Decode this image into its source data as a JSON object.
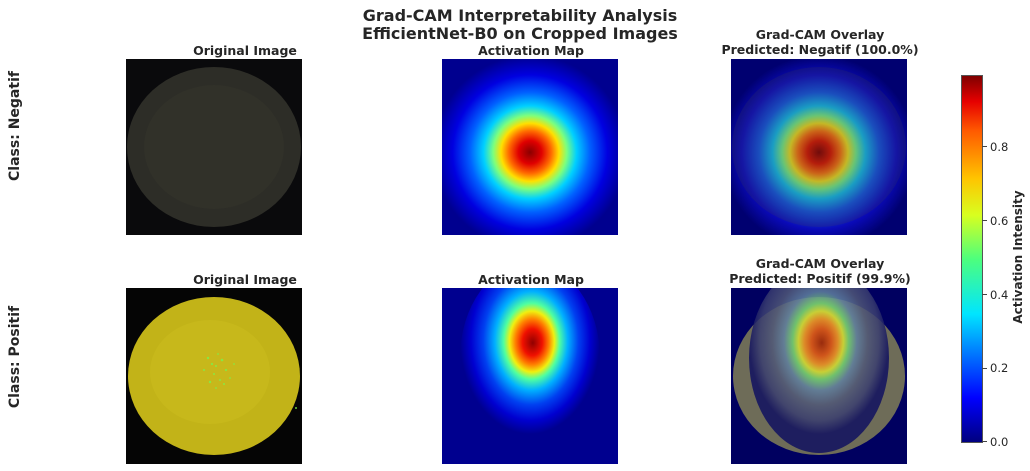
{
  "figure": {
    "title_line1": "Grad-CAM Interpretability Analysis",
    "title_line2": "EfficientNet-B0 on Cropped Images"
  },
  "rows": [
    {
      "label": "Class: Negatif",
      "panels": {
        "original": "Original Image",
        "activation": "Activation Map",
        "overlay_line1": "Grad-CAM Overlay",
        "overlay_line2": "Predicted: Negatif (100.0%)"
      }
    },
    {
      "label": "Class: Positif",
      "panels": {
        "original": "Original Image",
        "activation": "Activation Map",
        "overlay_line1": "Grad-CAM Overlay",
        "overlay_line2": "Predicted: Positif (99.9%)"
      }
    }
  ],
  "colorbar": {
    "label": "Activation Intensity",
    "ticks": [
      "0.0",
      "0.2",
      "0.4",
      "0.6",
      "0.8"
    ],
    "colormap": "jet"
  },
  "colors": {
    "egg_dark": "#2f2f29",
    "egg_yellow": "#c4b414",
    "background_black": "#050505",
    "jet_low": "#00007f",
    "jet_high": "#7f0000"
  }
}
